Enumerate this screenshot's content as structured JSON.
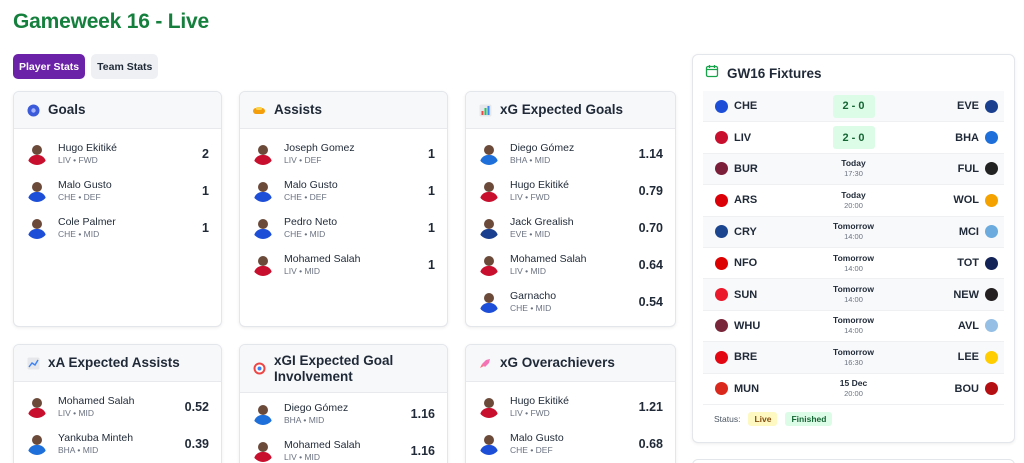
{
  "page": {
    "title": "Gameweek 16 - Live"
  },
  "tabs": [
    {
      "label": "Player Stats",
      "active": true
    },
    {
      "label": "Team Stats",
      "active": false
    }
  ],
  "cards": {
    "goals": {
      "title": "Goals",
      "icon": "soccer-ball-icon",
      "rows": [
        {
          "name": "Hugo Ekitiké",
          "team": "LIV",
          "pos": "FWD",
          "value": "2"
        },
        {
          "name": "Malo Gusto",
          "team": "CHE",
          "pos": "DEF",
          "value": "1"
        },
        {
          "name": "Cole Palmer",
          "team": "CHE",
          "pos": "MID",
          "value": "1"
        }
      ]
    },
    "assists": {
      "title": "Assists",
      "icon": "handshake-icon",
      "rows": [
        {
          "name": "Joseph Gomez",
          "team": "LIV",
          "pos": "DEF",
          "value": "1"
        },
        {
          "name": "Malo Gusto",
          "team": "CHE",
          "pos": "DEF",
          "value": "1"
        },
        {
          "name": "Pedro Neto",
          "team": "CHE",
          "pos": "MID",
          "value": "1"
        },
        {
          "name": "Mohamed Salah",
          "team": "LIV",
          "pos": "MID",
          "value": "1"
        }
      ]
    },
    "xg": {
      "title": "xG Expected Goals",
      "icon": "bar-chart-icon",
      "rows": [
        {
          "name": "Diego Gómez",
          "team": "BHA",
          "pos": "MID",
          "value": "1.14"
        },
        {
          "name": "Hugo Ekitiké",
          "team": "LIV",
          "pos": "FWD",
          "value": "0.79"
        },
        {
          "name": "Jack Grealish",
          "team": "EVE",
          "pos": "MID",
          "value": "0.70"
        },
        {
          "name": "Mohamed Salah",
          "team": "LIV",
          "pos": "MID",
          "value": "0.64"
        },
        {
          "name": "Garnacho",
          "team": "CHE",
          "pos": "MID",
          "value": "0.54"
        }
      ]
    },
    "xa": {
      "title": "xA Expected Assists",
      "icon": "trend-chart-icon",
      "rows": [
        {
          "name": "Mohamed Salah",
          "team": "LIV",
          "pos": "MID",
          "value": "0.52"
        },
        {
          "name": "Yankuba Minteh",
          "team": "BHA",
          "pos": "MID",
          "value": "0.39"
        }
      ]
    },
    "xgi": {
      "title": "xGI Expected Goal Involvement",
      "icon": "target-icon",
      "rows": [
        {
          "name": "Diego Gómez",
          "team": "BHA",
          "pos": "MID",
          "value": "1.16"
        },
        {
          "name": "Mohamed Salah",
          "team": "LIV",
          "pos": "MID",
          "value": "1.16"
        }
      ]
    },
    "over": {
      "title": "xG Overachievers",
      "icon": "rocket-icon",
      "rows": [
        {
          "name": "Hugo Ekitiké",
          "team": "LIV",
          "pos": "FWD",
          "value": "1.21"
        },
        {
          "name": "Malo Gusto",
          "team": "CHE",
          "pos": "DEF",
          "value": "0.68"
        }
      ]
    }
  },
  "fixtures": {
    "title": "GW16 Fixtures",
    "icon": "calendar-icon",
    "rows": [
      {
        "home": "CHE",
        "away": "EVE",
        "score": "2 - 0"
      },
      {
        "home": "LIV",
        "away": "BHA",
        "score": "2 - 0"
      },
      {
        "home": "BUR",
        "away": "FUL",
        "day": "Today",
        "time": "17:30"
      },
      {
        "home": "ARS",
        "away": "WOL",
        "day": "Today",
        "time": "20:00"
      },
      {
        "home": "CRY",
        "away": "MCI",
        "day": "Tomorrow",
        "time": "14:00"
      },
      {
        "home": "NFO",
        "away": "TOT",
        "day": "Tomorrow",
        "time": "14:00"
      },
      {
        "home": "SUN",
        "away": "NEW",
        "day": "Tomorrow",
        "time": "14:00"
      },
      {
        "home": "WHU",
        "away": "AVL",
        "day": "Tomorrow",
        "time": "14:00"
      },
      {
        "home": "BRE",
        "away": "LEE",
        "day": "Tomorrow",
        "time": "16:30"
      },
      {
        "home": "MUN",
        "away": "BOU",
        "day": "15 Dec",
        "time": "20:00"
      }
    ],
    "status_label": "Status:",
    "badge_live": "Live",
    "badge_finished": "Finished"
  },
  "colors": {
    "title_green": "#15803d",
    "tab_active": "#6b21a8",
    "score_bg": "#dcfce7",
    "live_bg": "#fef9c3",
    "club_colors": {
      "CHE": "#1d4ed8",
      "LIV": "#c8102e",
      "BHA": "#1e6fd9",
      "EVE": "#1b3f8f",
      "BUR": "#7a1e3a",
      "FUL": "#222222",
      "ARS": "#db0007",
      "WOL": "#f4a200",
      "CRY": "#1b458f",
      "MCI": "#6cabdd",
      "NFO": "#dd0000",
      "TOT": "#132257",
      "SUN": "#eb172b",
      "NEW": "#241f20",
      "WHU": "#7a263a",
      "AVL": "#95bfe5",
      "BRE": "#e30613",
      "LEE": "#ffcd00",
      "MUN": "#da291c",
      "BOU": "#b50e12"
    }
  }
}
